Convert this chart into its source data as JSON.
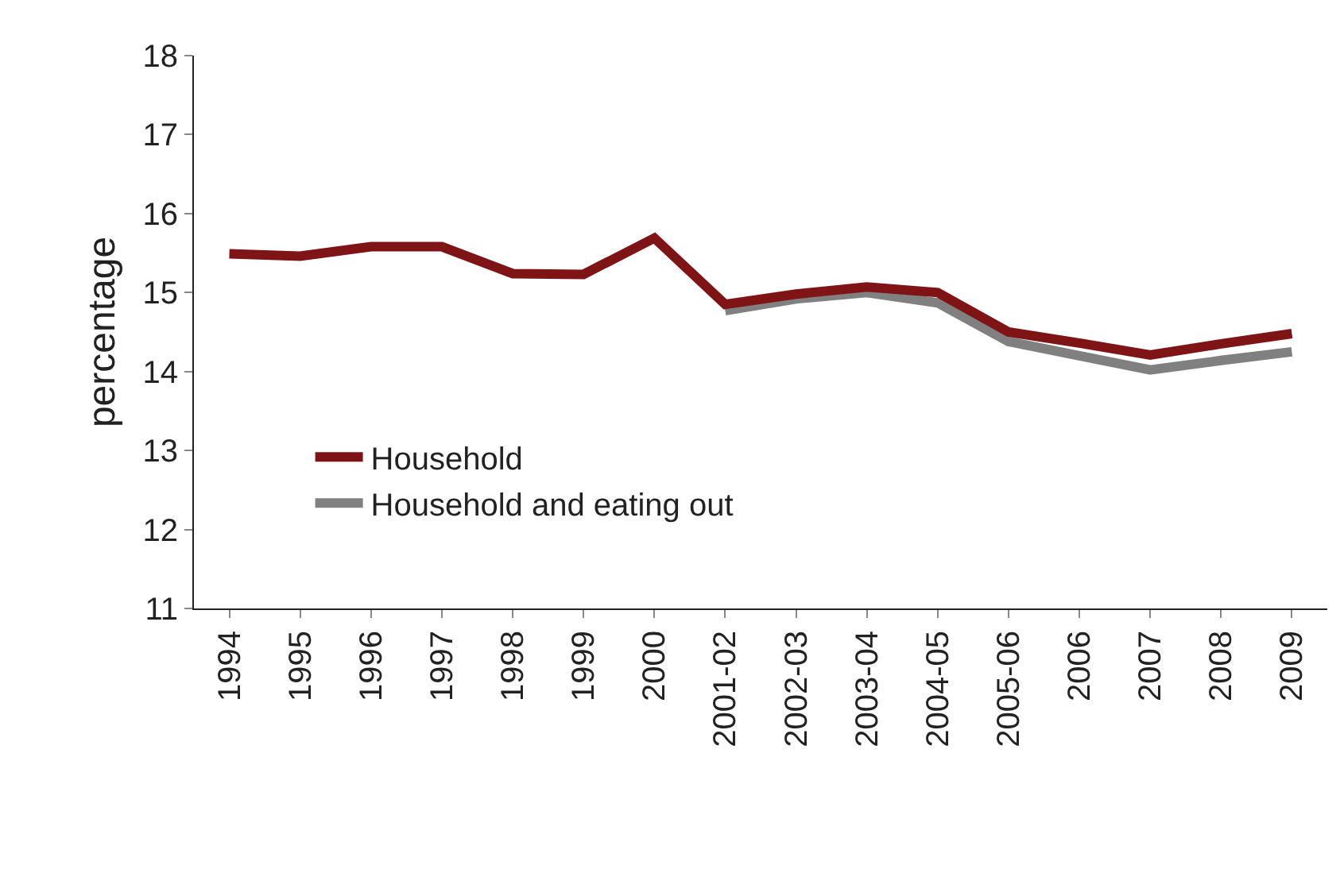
{
  "chart_data": {
    "type": "line",
    "ylabel": "percentage",
    "categories": [
      "1994",
      "1995",
      "1996",
      "1997",
      "1998",
      "1999",
      "2000",
      "2001-02",
      "2002-03",
      "2003-04",
      "2004-05",
      "2005-06",
      "2006",
      "2007",
      "2008",
      "2009"
    ],
    "series": [
      {
        "name": "Household",
        "color": "#7f1416",
        "values": [
          15.49,
          15.46,
          15.58,
          15.58,
          15.24,
          15.23,
          15.69,
          14.85,
          14.98,
          15.07,
          15.0,
          14.5,
          14.36,
          14.21,
          14.35,
          14.48
        ]
      },
      {
        "name": "Household and eating out",
        "color": "#808080",
        "values": [
          null,
          null,
          null,
          null,
          null,
          null,
          null,
          14.77,
          14.92,
          15.0,
          14.87,
          14.38,
          14.2,
          14.02,
          14.14,
          14.25
        ]
      }
    ],
    "ylim": [
      11,
      18
    ],
    "yticks": [
      11,
      12,
      13,
      14,
      15,
      16,
      17,
      18
    ],
    "legend": "bottom left",
    "marker": "none",
    "line_style": "solid"
  }
}
